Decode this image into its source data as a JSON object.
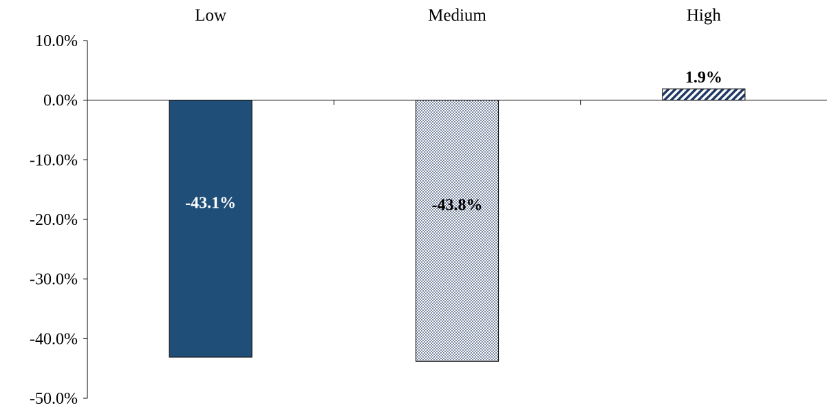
{
  "chart_data": {
    "type": "bar",
    "title": "",
    "xlabel": "",
    "ylabel": "",
    "categories": [
      "Low",
      "Medium",
      "High"
    ],
    "values": [
      -43.1,
      -43.8,
      1.9
    ],
    "data_labels": [
      "-43.1%",
      "-43.8%",
      "1.9%"
    ],
    "ylim": [
      -50,
      10
    ],
    "yticks": [
      10,
      0,
      -10,
      -20,
      -30,
      -40,
      -50
    ],
    "ytick_labels": [
      "10.0%",
      "0.0%",
      "-10.0%",
      "-20.0%",
      "-30.0%",
      "-40.0%",
      "-50.0%"
    ],
    "category_axis_position": "top",
    "grid": false,
    "legend": false,
    "bar_styles": [
      {
        "fill": "solid",
        "color": "#1f4e79"
      },
      {
        "fill": "dotted",
        "color": "#1f3864"
      },
      {
        "fill": "diagonal-stripes",
        "color": "#1f3864"
      }
    ],
    "label_colors": [
      "#ffffff",
      "#000000",
      "#000000"
    ]
  }
}
